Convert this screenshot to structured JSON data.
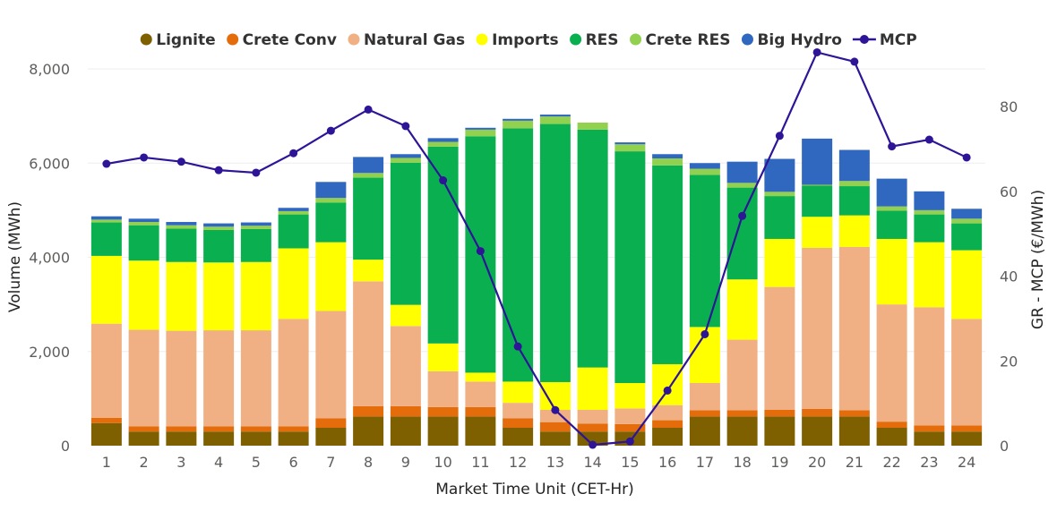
{
  "chart_data": {
    "type": "bar",
    "stacked": true,
    "categories": [
      "1",
      "2",
      "3",
      "4",
      "5",
      "6",
      "7",
      "8",
      "9",
      "10",
      "11",
      "12",
      "13",
      "14",
      "15",
      "16",
      "17",
      "18",
      "19",
      "20",
      "21",
      "22",
      "23",
      "24"
    ],
    "series": [
      {
        "name": "Lignite",
        "color": "#7f6000",
        "values": [
          480,
          300,
          300,
          300,
          300,
          300,
          380,
          620,
          620,
          620,
          620,
          380,
          300,
          300,
          300,
          380,
          620,
          620,
          620,
          620,
          620,
          380,
          300,
          300
        ]
      },
      {
        "name": "Crete Conv",
        "color": "#e46c0a",
        "values": [
          110,
          110,
          110,
          110,
          110,
          110,
          200,
          220,
          220,
          200,
          200,
          200,
          200,
          170,
          160,
          160,
          130,
          130,
          140,
          160,
          130,
          130,
          130,
          130
        ]
      },
      {
        "name": "Natural Gas",
        "color": "#f0b084",
        "values": [
          2000,
          2050,
          2030,
          2040,
          2040,
          2280,
          2280,
          2650,
          1700,
          760,
          540,
          330,
          260,
          290,
          330,
          320,
          580,
          1500,
          2610,
          3420,
          3470,
          2490,
          2510,
          2260
        ]
      },
      {
        "name": "Imports",
        "color": "#ffff00",
        "values": [
          1440,
          1470,
          1460,
          1440,
          1450,
          1500,
          1460,
          460,
          450,
          590,
          190,
          450,
          590,
          900,
          540,
          870,
          1190,
          1280,
          1020,
          660,
          670,
          1390,
          1380,
          1460
        ]
      },
      {
        "name": "RES",
        "color": "#0ab050",
        "values": [
          710,
          750,
          710,
          690,
          700,
          720,
          840,
          1740,
          3020,
          4180,
          5020,
          5380,
          5480,
          5050,
          4920,
          4220,
          3230,
          1950,
          910,
          660,
          620,
          600,
          590,
          570
        ]
      },
      {
        "name": "Crete RES",
        "color": "#92d050",
        "values": [
          60,
          70,
          70,
          70,
          70,
          70,
          100,
          100,
          100,
          100,
          140,
          160,
          160,
          150,
          150,
          150,
          130,
          100,
          90,
          20,
          110,
          90,
          90,
          100
        ]
      },
      {
        "name": "Big Hydro",
        "color": "#3068c0",
        "values": [
          70,
          70,
          70,
          70,
          70,
          70,
          340,
          340,
          80,
          80,
          40,
          40,
          40,
          0,
          40,
          90,
          120,
          450,
          700,
          980,
          660,
          590,
          400,
          210
        ]
      }
    ],
    "line_series": {
      "name": "MCP",
      "color": "#2e1497",
      "axis": "right",
      "values": [
        66.5,
        68,
        67,
        65,
        64.4,
        69,
        74.3,
        79.3,
        75.4,
        62.6,
        45.9,
        23.4,
        8.4,
        0.2,
        1,
        13,
        26.3,
        54.2,
        73.1,
        92.8,
        90.6,
        70.6,
        72.2,
        68
      ]
    },
    "title": "",
    "xlabel": "Market Time Unit (CET-Hr)",
    "ylabel": "Volume (MWh)",
    "y2label": "GR - MCP (€/MWh)",
    "ylim": [
      0,
      8000
    ],
    "y2lim": [
      0,
      88.89
    ],
    "yticks": [
      "0",
      "2,000",
      "4,000",
      "6,000",
      "8,000"
    ],
    "yticks_values": [
      0,
      2000,
      4000,
      6000,
      8000
    ],
    "y2ticks": [
      "0",
      "20",
      "40",
      "60",
      "80"
    ],
    "y2ticks_values": [
      0,
      20,
      40,
      60,
      80
    ],
    "legend": {
      "placement": "top-center",
      "entries": [
        "Lignite",
        "Crete Conv",
        "Natural Gas",
        "Imports",
        "RES",
        "Crete RES",
        "Big Hydro",
        "MCP"
      ]
    },
    "grid": true
  }
}
